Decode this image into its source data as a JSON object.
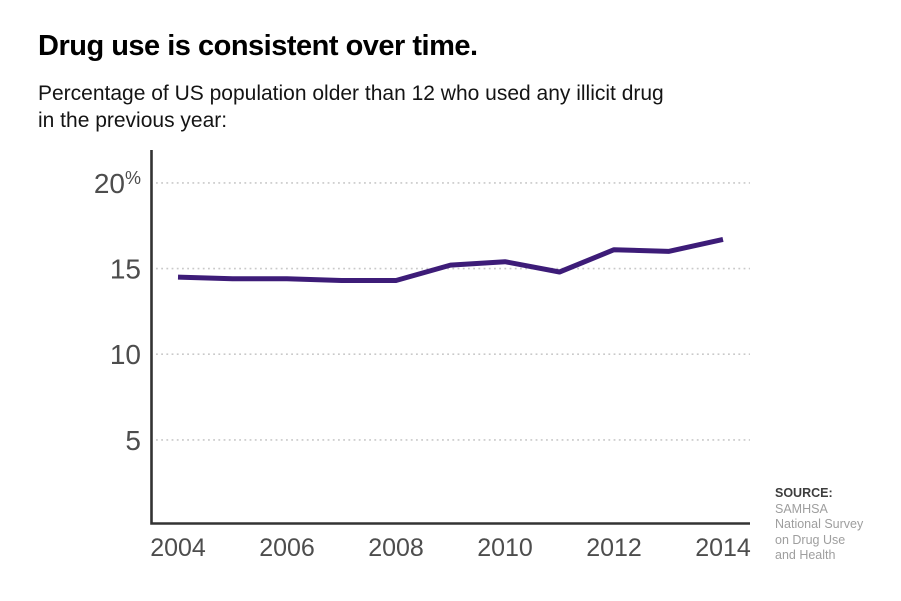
{
  "title": "Drug use is consistent over time.",
  "subtitle_lines": [
    "Percentage of US population older than 12 who used any illicit drug",
    "in the previous year:"
  ],
  "source": {
    "label": "SOURCE:",
    "lines": [
      "SAMHSA",
      "National Survey",
      "on Drug Use",
      "and Health"
    ]
  },
  "colors": {
    "line": "#3d1c78",
    "axis": "#333333",
    "grid": "#c9c9c9",
    "tick_label": "#4d4d4d",
    "title": "#000000",
    "source_label": "#3d3d3d",
    "source_body": "#9e9e9e"
  },
  "chart_data": {
    "type": "line",
    "title": "Drug use is consistent over time.",
    "subtitle": "Percentage of US population older than 12 who used any illicit drug in the previous year:",
    "x": [
      2004,
      2005,
      2006,
      2007,
      2008,
      2009,
      2010,
      2011,
      2012,
      2013,
      2014
    ],
    "series": [
      {
        "name": "Percent of US population 12+ who used any illicit drug in previous year",
        "values": [
          14.5,
          14.4,
          14.4,
          14.3,
          14.3,
          15.2,
          15.4,
          14.8,
          16.1,
          16.0,
          16.7
        ]
      }
    ],
    "xlabel": "",
    "ylabel": "",
    "xlim": [
      2004,
      2014
    ],
    "ylim": [
      0,
      22
    ],
    "yticks": [
      5,
      10,
      15,
      20
    ],
    "ytick_labels": [
      "5",
      "10",
      "15",
      "20%"
    ],
    "xticks": [
      2004,
      2006,
      2008,
      2010,
      2012,
      2014
    ],
    "grid": "horizontal dotted lines at yticks",
    "legend": "none"
  }
}
